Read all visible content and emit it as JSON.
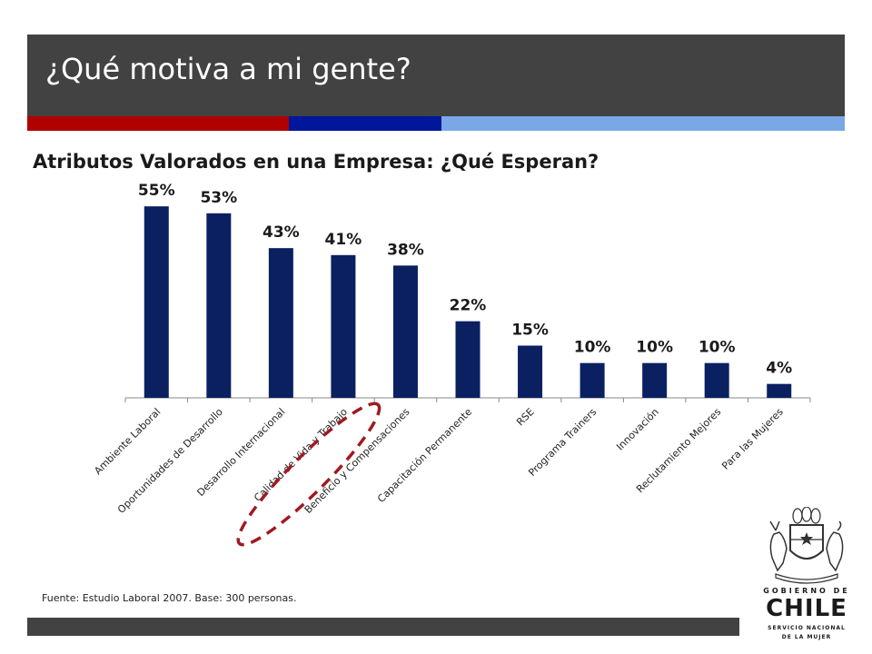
{
  "header": {
    "title": "¿Qué motiva a mi gente?",
    "colors": {
      "bar": "#424242",
      "stripe_red": "#b00000",
      "stripe_blue": "#00169b",
      "stripe_light": "#7aa7e6"
    }
  },
  "chart_data": {
    "type": "bar",
    "title": "Atributos Valorados en una Empresa: ¿Qué Esperan?",
    "categories": [
      "Ambiente Laboral",
      "Oportunidades de Desarrollo",
      "Desarrollo Internacional",
      "Calidad de Vida y Trabajo",
      "Beneficio y Compensaciones",
      "Capacitación Permanente",
      "RSE",
      "Programa Trainers",
      "Innovación",
      "Reclutamiento Mejores",
      "Para las Mujeres"
    ],
    "values": [
      55,
      53,
      43,
      41,
      38,
      22,
      15,
      10,
      10,
      10,
      4
    ],
    "data_labels": [
      "55%",
      "53%",
      "43%",
      "41%",
      "38%",
      "22%",
      "15%",
      "10%",
      "10%",
      "10%",
      "4%"
    ],
    "ylim": [
      0,
      60
    ],
    "grid": false,
    "legend": false,
    "bar_color": "#0a2060",
    "highlight_category": "Calidad de Vida y Trabajo",
    "highlight_color": "#a01a20"
  },
  "footer": {
    "source": "Fuente: Estudio Laboral 2007. Base: 300 personas."
  },
  "logo": {
    "line1": "GOBIERNO DE",
    "line2": "CHILE",
    "line3": "SERVICIO NACIONAL",
    "line4": "DE LA MUJER"
  }
}
